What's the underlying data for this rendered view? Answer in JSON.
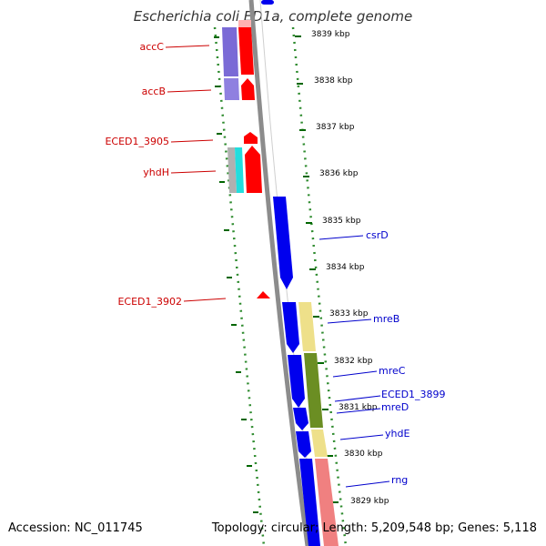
{
  "title": "Escherichia coli ED1a, complete genome",
  "footer": {
    "accession": "Accession: NC_011745",
    "summary": "Topology: circular; Length: 5,209,548 bp; Genes: 5,118"
  },
  "colors": {
    "forward_gene": "#ff0000",
    "forward_gene_faded": "#ffb3b3",
    "reverse_gene": "#0000ee",
    "gene_label_forward": "#cc0000",
    "gene_label_reverse": "#0000cc",
    "tick": "#006600",
    "backbone": "#8c8c8c"
  },
  "ruler": {
    "unit": "kbp",
    "ticks": [
      "3839 kbp",
      "3838 kbp",
      "3837 kbp",
      "3836 kbp",
      "3835 kbp",
      "3834 kbp",
      "3833 kbp",
      "3832 kbp",
      "3831 kbp",
      "3830 kbp",
      "3829 kbp"
    ]
  },
  "gene_labels": {
    "forward_strand": [
      "accC",
      "accB",
      "ECED1_3905",
      "yhdH",
      "ECED1_3902"
    ],
    "reverse_strand": [
      "csrD",
      "mreB",
      "mreC",
      "ECED1_3899",
      "mreD",
      "yhdE",
      "rng"
    ]
  }
}
